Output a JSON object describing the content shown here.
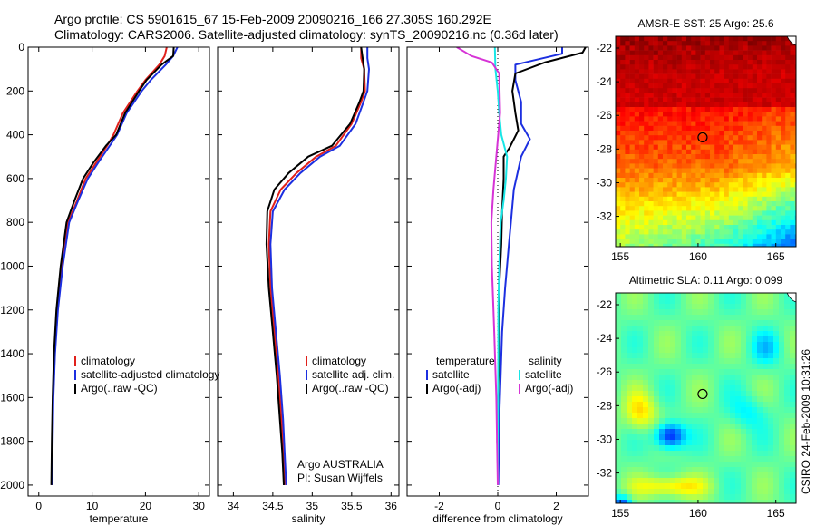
{
  "figure": {
    "title_line1": "Argo profile: CS 5901615_67 15-Feb-2009 20090216_166 27.305S 160.292E",
    "title_line2": "Climatology: CARS2006. Satellite-adjusted climatology: synTS_20090216.nc (0.36d later)",
    "side_label": "CSIRO 24-Feb-2009 10:31:26",
    "info_line1": "Argo AUSTRALIA",
    "info_line2": "PI: Susan Wijffels"
  },
  "colors": {
    "climatology": "#e0201b",
    "satellite": "#1c2fe0",
    "argo": "#000000",
    "sal_satellite": "#18e6e6",
    "sal_argo": "#d633d6",
    "ocean_sst_warm": "#b00000",
    "ocean_sla": "#2fbf80"
  },
  "chart_data": [
    {
      "id": "temperature",
      "type": "line",
      "xlabel": "temperature",
      "ylabel": "",
      "xlim": [
        -2,
        32
      ],
      "ylim": [
        2050,
        0
      ],
      "xticks": [
        0,
        10,
        20,
        30
      ],
      "yticks": [
        0,
        200,
        400,
        600,
        800,
        1000,
        1200,
        1400,
        1600,
        1800,
        2000
      ],
      "legend": [
        "climatology",
        "satellite-adjusted climatology",
        "Argo(..raw -QC)"
      ],
      "series": [
        {
          "name": "climatology",
          "color": "#e0201b",
          "x": [
            24.0,
            23.6,
            22.6,
            20.0,
            18.5,
            15.8,
            14.0,
            12.8,
            10.8,
            8.8,
            7.2,
            5.5,
            4.3,
            3.5,
            3.0,
            2.7,
            2.55,
            2.45
          ],
          "y": [
            0,
            40,
            80,
            150,
            200,
            300,
            400,
            450,
            525,
            600,
            700,
            800,
            1000,
            1200,
            1400,
            1600,
            1800,
            2000
          ]
        },
        {
          "name": "satellite-adjusted climatology",
          "color": "#1c2fe0",
          "x": [
            26.0,
            25.2,
            23.8,
            21.0,
            19.3,
            16.5,
            14.7,
            13.3,
            11.2,
            9.2,
            7.4,
            5.7,
            4.5,
            3.6,
            3.05,
            2.75,
            2.6,
            2.5
          ],
          "y": [
            0,
            40,
            80,
            150,
            200,
            300,
            400,
            450,
            525,
            600,
            700,
            800,
            1000,
            1200,
            1400,
            1600,
            1800,
            2000
          ]
        },
        {
          "name": "Argo(..raw -QC)",
          "color": "#000000",
          "x": [
            25.3,
            25.2,
            23.0,
            20.2,
            18.8,
            16.2,
            14.5,
            12.6,
            10.3,
            8.3,
            6.7,
            5.2,
            4.1,
            3.3,
            2.85,
            2.6,
            2.45,
            2.35
          ],
          "y": [
            0,
            40,
            80,
            150,
            200,
            300,
            400,
            450,
            525,
            600,
            700,
            800,
            1000,
            1200,
            1400,
            1600,
            1800,
            2000
          ]
        }
      ]
    },
    {
      "id": "salinity",
      "type": "line",
      "xlabel": "salinity",
      "ylabel": "",
      "xlim": [
        33.8,
        36.1
      ],
      "ylim": [
        2050,
        0
      ],
      "xticks": [
        34,
        34.5,
        35,
        35.5,
        36
      ],
      "yticks": [
        0,
        200,
        400,
        600,
        800,
        1000,
        1200,
        1400,
        1600,
        1800,
        2000
      ],
      "legend": [
        "climatology",
        "satellite adj. clim.",
        "Argo(..raw -QC)"
      ],
      "series": [
        {
          "name": "climatology",
          "color": "#e0201b",
          "x": [
            35.62,
            35.62,
            35.66,
            35.67,
            35.62,
            35.5,
            35.3,
            35.05,
            34.8,
            34.6,
            34.47,
            34.45,
            34.47,
            34.52,
            34.57,
            34.61,
            34.63,
            34.65
          ],
          "y": [
            0,
            50,
            100,
            200,
            250,
            350,
            450,
            500,
            575,
            650,
            750,
            900,
            1100,
            1300,
            1500,
            1700,
            1850,
            2000
          ]
        },
        {
          "name": "satellite adj. clim.",
          "color": "#1c2fe0",
          "x": [
            35.7,
            35.7,
            35.72,
            35.7,
            35.65,
            35.55,
            35.35,
            35.1,
            34.85,
            34.65,
            34.5,
            34.47,
            34.49,
            34.54,
            34.59,
            34.63,
            34.65,
            34.67
          ],
          "y": [
            0,
            50,
            100,
            200,
            250,
            350,
            450,
            500,
            575,
            650,
            750,
            900,
            1100,
            1300,
            1500,
            1700,
            1850,
            2000
          ]
        },
        {
          "name": "Argo(..raw -QC)",
          "color": "#000000",
          "x": [
            35.62,
            35.64,
            35.66,
            35.65,
            35.6,
            35.48,
            35.25,
            34.95,
            34.7,
            34.52,
            34.43,
            34.42,
            34.45,
            34.5,
            34.55,
            34.59,
            34.62,
            34.64
          ],
          "y": [
            0,
            50,
            100,
            200,
            250,
            350,
            450,
            500,
            575,
            650,
            750,
            900,
            1100,
            1300,
            1500,
            1700,
            1850,
            2000
          ]
        }
      ]
    },
    {
      "id": "difference",
      "type": "line",
      "xlabel": "difference from climatology",
      "ylabel": "",
      "xlim": [
        -3.1,
        3.1
      ],
      "ylim": [
        2050,
        0
      ],
      "xticks": [
        -2,
        0,
        2
      ],
      "yticks": [
        0,
        200,
        400,
        600,
        800,
        1000,
        1200,
        1400,
        1600,
        1800,
        2000
      ],
      "legend_groups": [
        {
          "header": "temperature",
          "items": [
            "satellite",
            "Argo(-adj)"
          ]
        },
        {
          "header": "salinity",
          "items": [
            "satellite",
            "Argo(-adj)"
          ]
        }
      ],
      "series": [
        {
          "name": "satellite",
          "group": "temperature",
          "color": "#1c2fe0",
          "x": [
            2.2,
            2.2,
            0.6,
            0.6,
            0.8,
            0.8,
            1.1,
            0.8,
            0.7,
            0.55,
            0.45,
            0.38,
            0.25,
            0.15,
            0.1,
            0.05,
            0.05,
            0.03,
            0.02
          ],
          "y": [
            0,
            30,
            80,
            150,
            250,
            350,
            420,
            500,
            560,
            650,
            800,
            900,
            1100,
            1300,
            1500,
            1700,
            1800,
            1900,
            2000
          ]
        },
        {
          "name": "Argo(-adj)",
          "group": "temperature",
          "color": "#000000",
          "x": [
            3.0,
            2.9,
            1.6,
            0.6,
            0.5,
            0.6,
            0.7,
            0.4,
            0.2,
            0.2,
            0.15,
            0.12,
            0.05,
            0.05,
            0.03,
            0.0,
            -0.02,
            0.0,
            0.0
          ],
          "y": [
            0,
            25,
            70,
            120,
            200,
            300,
            380,
            460,
            500,
            600,
            750,
            900,
            1100,
            1300,
            1500,
            1650,
            1800,
            1900,
            2000
          ]
        },
        {
          "name": "satellite",
          "group": "salinity",
          "color": "#18e6e6",
          "x": [
            -0.1,
            -0.08,
            0.0,
            0.05,
            0.12,
            0.22,
            0.32,
            0.28,
            0.2,
            0.1,
            0.05,
            0.02,
            0.02,
            0.01,
            0.0,
            0.0
          ],
          "y": [
            0,
            100,
            200,
            300,
            400,
            450,
            500,
            600,
            700,
            800,
            1000,
            1200,
            1400,
            1600,
            1800,
            2000
          ]
        },
        {
          "name": "Argo(-adj)",
          "group": "salinity",
          "color": "#d633d6",
          "x": [
            -1.4,
            -0.9,
            -0.2,
            0.05,
            0.08,
            -0.05,
            -0.15,
            -0.22,
            -0.2,
            -0.12,
            -0.05,
            0.0
          ],
          "y": [
            0,
            40,
            70,
            120,
            300,
            500,
            650,
            800,
            1000,
            1300,
            1600,
            2000
          ]
        }
      ]
    },
    {
      "id": "sst-map",
      "type": "heatmap",
      "title": "AMSR-E SST: 25 Argo: 25.6",
      "xlim": [
        154.7,
        166.3
      ],
      "ylim": [
        -33.8,
        -21.3
      ],
      "xticks": [
        155,
        160,
        165
      ],
      "yticks": [
        -22,
        -24,
        -26,
        -28,
        -30,
        -32
      ],
      "marker": {
        "lon": 160.292,
        "lat": -27.305
      }
    },
    {
      "id": "sla-map",
      "type": "heatmap",
      "title": "Altimetric SLA: 0.11 Argo: 0.099",
      "xlim": [
        154.7,
        166.3
      ],
      "ylim": [
        -33.8,
        -21.3
      ],
      "xticks": [
        155,
        160,
        165
      ],
      "yticks": [
        -22,
        -24,
        -26,
        -28,
        -30,
        -32
      ],
      "marker": {
        "lon": 160.292,
        "lat": -27.305
      }
    }
  ]
}
